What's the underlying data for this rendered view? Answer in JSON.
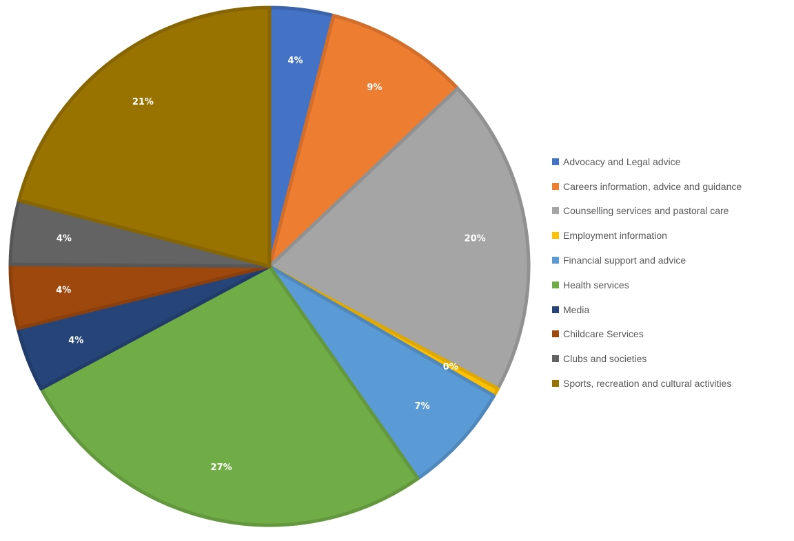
{
  "chart_data": {
    "type": "pie",
    "title": "",
    "legend_position": "right",
    "slices": [
      {
        "name": "Advocacy and Legal advice",
        "value": 4,
        "label": "4%",
        "color": "#4472C4"
      },
      {
        "name": "Careers information, advice and guidance",
        "value": 9,
        "label": "9%",
        "color": "#ED7D31"
      },
      {
        "name": "Counselling services and pastoral care",
        "value": 20,
        "label": "20%",
        "color": "#A5A5A5"
      },
      {
        "name": "Employment information",
        "value": 0.5,
        "label": "0%",
        "color": "#FFC000"
      },
      {
        "name": "Financial support and advice",
        "value": 7,
        "label": "7%",
        "color": "#5B9BD5"
      },
      {
        "name": "Health services",
        "value": 27,
        "label": "27%",
        "color": "#70AD47"
      },
      {
        "name": "Media",
        "value": 4,
        "label": "4%",
        "color": "#264478"
      },
      {
        "name": "Childcare Services",
        "value": 4,
        "label": "4%",
        "color": "#9E480E"
      },
      {
        "name": "Clubs and societies",
        "value": 4,
        "label": "4%",
        "color": "#636363"
      },
      {
        "name": "Sports, recreation and cultural activities",
        "value": 21,
        "label": "21%",
        "color": "#997300"
      }
    ]
  }
}
